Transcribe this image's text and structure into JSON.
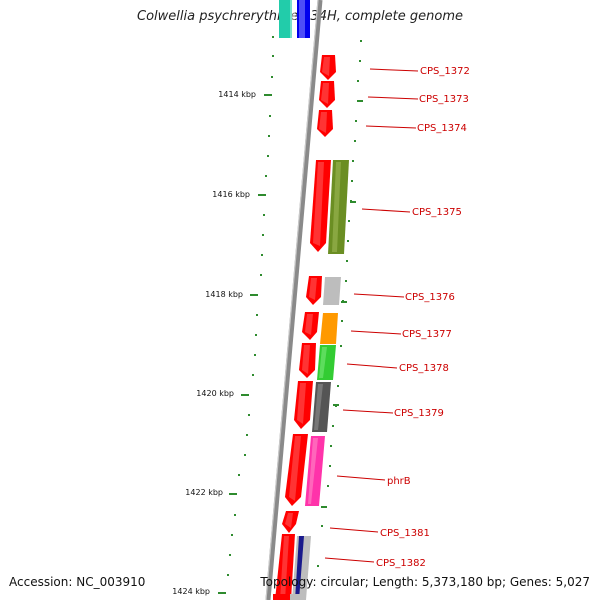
{
  "title": "Colwellia psychrerythraea 34H, complete genome",
  "footer": {
    "accession": "Accession: NC_003910",
    "summary": "Topology: circular; Length: 5,373,180 bp; Genes: 5,027"
  },
  "colors": {
    "backbone": "#8a8a8a",
    "scale_tick": "#2e8b2e",
    "gene_red": "#ff0000",
    "label_red": "#cc0000",
    "olive": "#6b8e23",
    "light_gray": "#bdbdbd",
    "orange": "#ff9900",
    "green": "#33cc33",
    "dark_gray": "#555555",
    "pink": "#ff33aa",
    "navy": "#1a1a8c",
    "teal": "#22ccaa",
    "blue": "#0000ee"
  },
  "scale_labels": [
    "1414 kbp",
    "1416 kbp",
    "1418 kbp",
    "1420 kbp",
    "1422 kbp",
    "1424 kbp"
  ],
  "gene_labels": [
    "CPS_1372",
    "CPS_1373",
    "CPS_1374",
    "CPS_1375",
    "CPS_1376",
    "CPS_1377",
    "CPS_1378",
    "CPS_1379",
    "phrB",
    "CPS_1381",
    "CPS_1382"
  ]
}
